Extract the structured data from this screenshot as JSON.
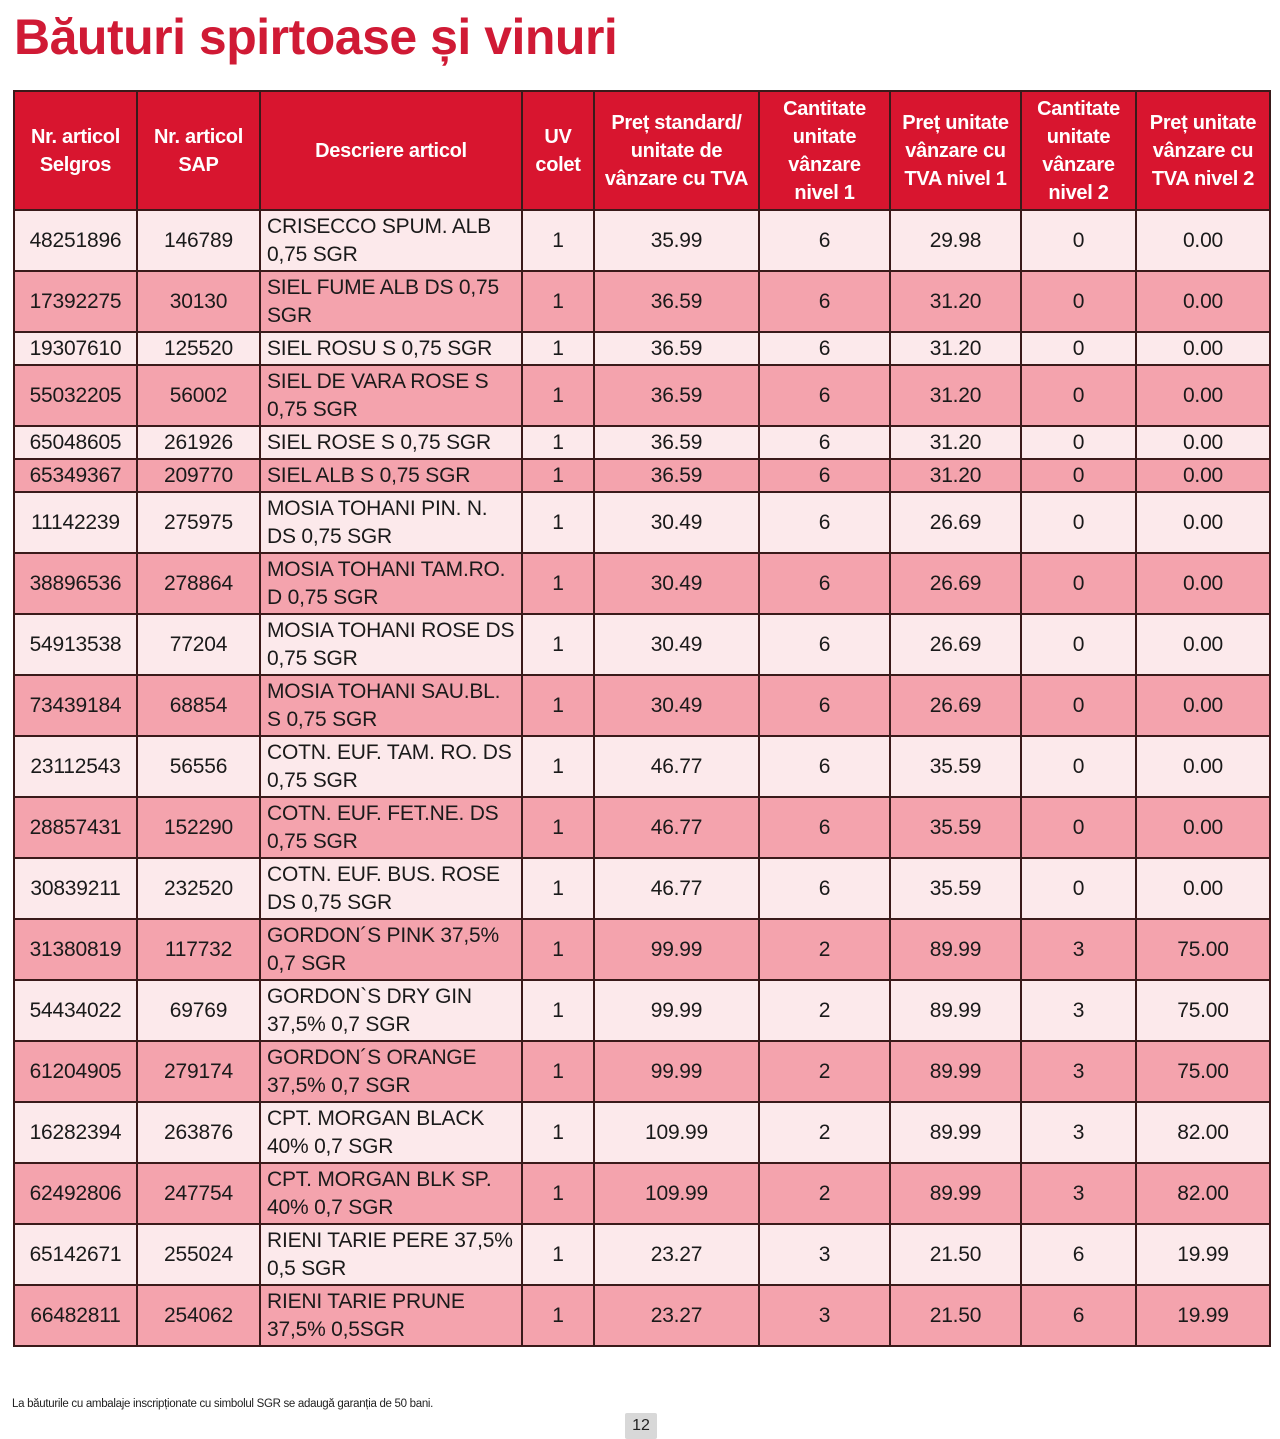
{
  "title": "Băuturi spirtoase și vinuri",
  "columns": [
    "Nr. articol Selgros",
    "Nr. articol SAP",
    "Descriere articol",
    "UV colet",
    "Preț standard/ unitate de vânzare cu TVA",
    "Cantitate unitate vânzare nivel 1",
    "Preț unitate vânzare cu TVA nivel 1",
    "Cantitate unitate vânzare nivel 2",
    "Preț unitate vânzare cu TVA nivel 2"
  ],
  "rows": [
    [
      "48251896",
      "146789",
      "CRISECCO SPUM. ALB 0,75 SGR",
      "1",
      "35.99",
      "6",
      "29.98",
      "0",
      "0.00"
    ],
    [
      "17392275",
      "30130",
      "SIEL FUME ALB DS 0,75 SGR",
      "1",
      "36.59",
      "6",
      "31.20",
      "0",
      "0.00"
    ],
    [
      "19307610",
      "125520",
      "SIEL ROSU S 0,75 SGR",
      "1",
      "36.59",
      "6",
      "31.20",
      "0",
      "0.00"
    ],
    [
      "55032205",
      "56002",
      "SIEL DE VARA ROSE S 0,75 SGR",
      "1",
      "36.59",
      "6",
      "31.20",
      "0",
      "0.00"
    ],
    [
      "65048605",
      "261926",
      "SIEL ROSE S 0,75 SGR",
      "1",
      "36.59",
      "6",
      "31.20",
      "0",
      "0.00"
    ],
    [
      "65349367",
      "209770",
      "SIEL ALB S 0,75 SGR",
      "1",
      "36.59",
      "6",
      "31.20",
      "0",
      "0.00"
    ],
    [
      "11142239",
      "275975",
      "MOSIA TOHANI PIN. N. DS 0,75 SGR",
      "1",
      "30.49",
      "6",
      "26.69",
      "0",
      "0.00"
    ],
    [
      "38896536",
      "278864",
      "MOSIA TOHANI TAM.RO. D 0,75 SGR",
      "1",
      "30.49",
      "6",
      "26.69",
      "0",
      "0.00"
    ],
    [
      "54913538",
      "77204",
      "MOSIA TOHANI ROSE DS 0,75 SGR",
      "1",
      "30.49",
      "6",
      "26.69",
      "0",
      "0.00"
    ],
    [
      "73439184",
      "68854",
      "MOSIA TOHANI SAU.BL. S 0,75 SGR",
      "1",
      "30.49",
      "6",
      "26.69",
      "0",
      "0.00"
    ],
    [
      "23112543",
      "56556",
      "COTN. EUF. TAM. RO. DS 0,75 SGR",
      "1",
      "46.77",
      "6",
      "35.59",
      "0",
      "0.00"
    ],
    [
      "28857431",
      "152290",
      "COTN. EUF. FET.NE. DS 0,75 SGR",
      "1",
      "46.77",
      "6",
      "35.59",
      "0",
      "0.00"
    ],
    [
      "30839211",
      "232520",
      "COTN. EUF. BUS. ROSE DS 0,75 SGR",
      "1",
      "46.77",
      "6",
      "35.59",
      "0",
      "0.00"
    ],
    [
      "31380819",
      "117732",
      "GORDON´S PINK 37,5% 0,7 SGR",
      "1",
      "99.99",
      "2",
      "89.99",
      "3",
      "75.00"
    ],
    [
      "54434022",
      "69769",
      "GORDON`S DRY GIN 37,5% 0,7 SGR",
      "1",
      "99.99",
      "2",
      "89.99",
      "3",
      "75.00"
    ],
    [
      "61204905",
      "279174",
      "GORDON´S ORANGE 37,5% 0,7 SGR",
      "1",
      "99.99",
      "2",
      "89.99",
      "3",
      "75.00"
    ],
    [
      "16282394",
      "263876",
      "CPT. MORGAN BLACK 40% 0,7 SGR",
      "1",
      "109.99",
      "2",
      "89.99",
      "3",
      "82.00"
    ],
    [
      "62492806",
      "247754",
      "CPT. MORGAN BLK SP. 40% 0,7 SGR",
      "1",
      "109.99",
      "2",
      "89.99",
      "3",
      "82.00"
    ],
    [
      "65142671",
      "255024",
      "RIENI TARIE PERE 37,5% 0,5 SGR",
      "1",
      "23.27",
      "3",
      "21.50",
      "6",
      "19.99"
    ],
    [
      "66482811",
      "254062",
      "RIENI TARIE PRUNE 37,5% 0,5SGR",
      "1",
      "23.27",
      "3",
      "21.50",
      "6",
      "19.99"
    ]
  ],
  "footnote": "La băuturile cu ambalaje inscripționate cu simbolul SGR se adaugă garanția de 50 bani.",
  "page_number": "12",
  "colors": {
    "accent": "#d8152f",
    "row_light": "#fce9eb",
    "row_pink": "#f4a3ad"
  }
}
